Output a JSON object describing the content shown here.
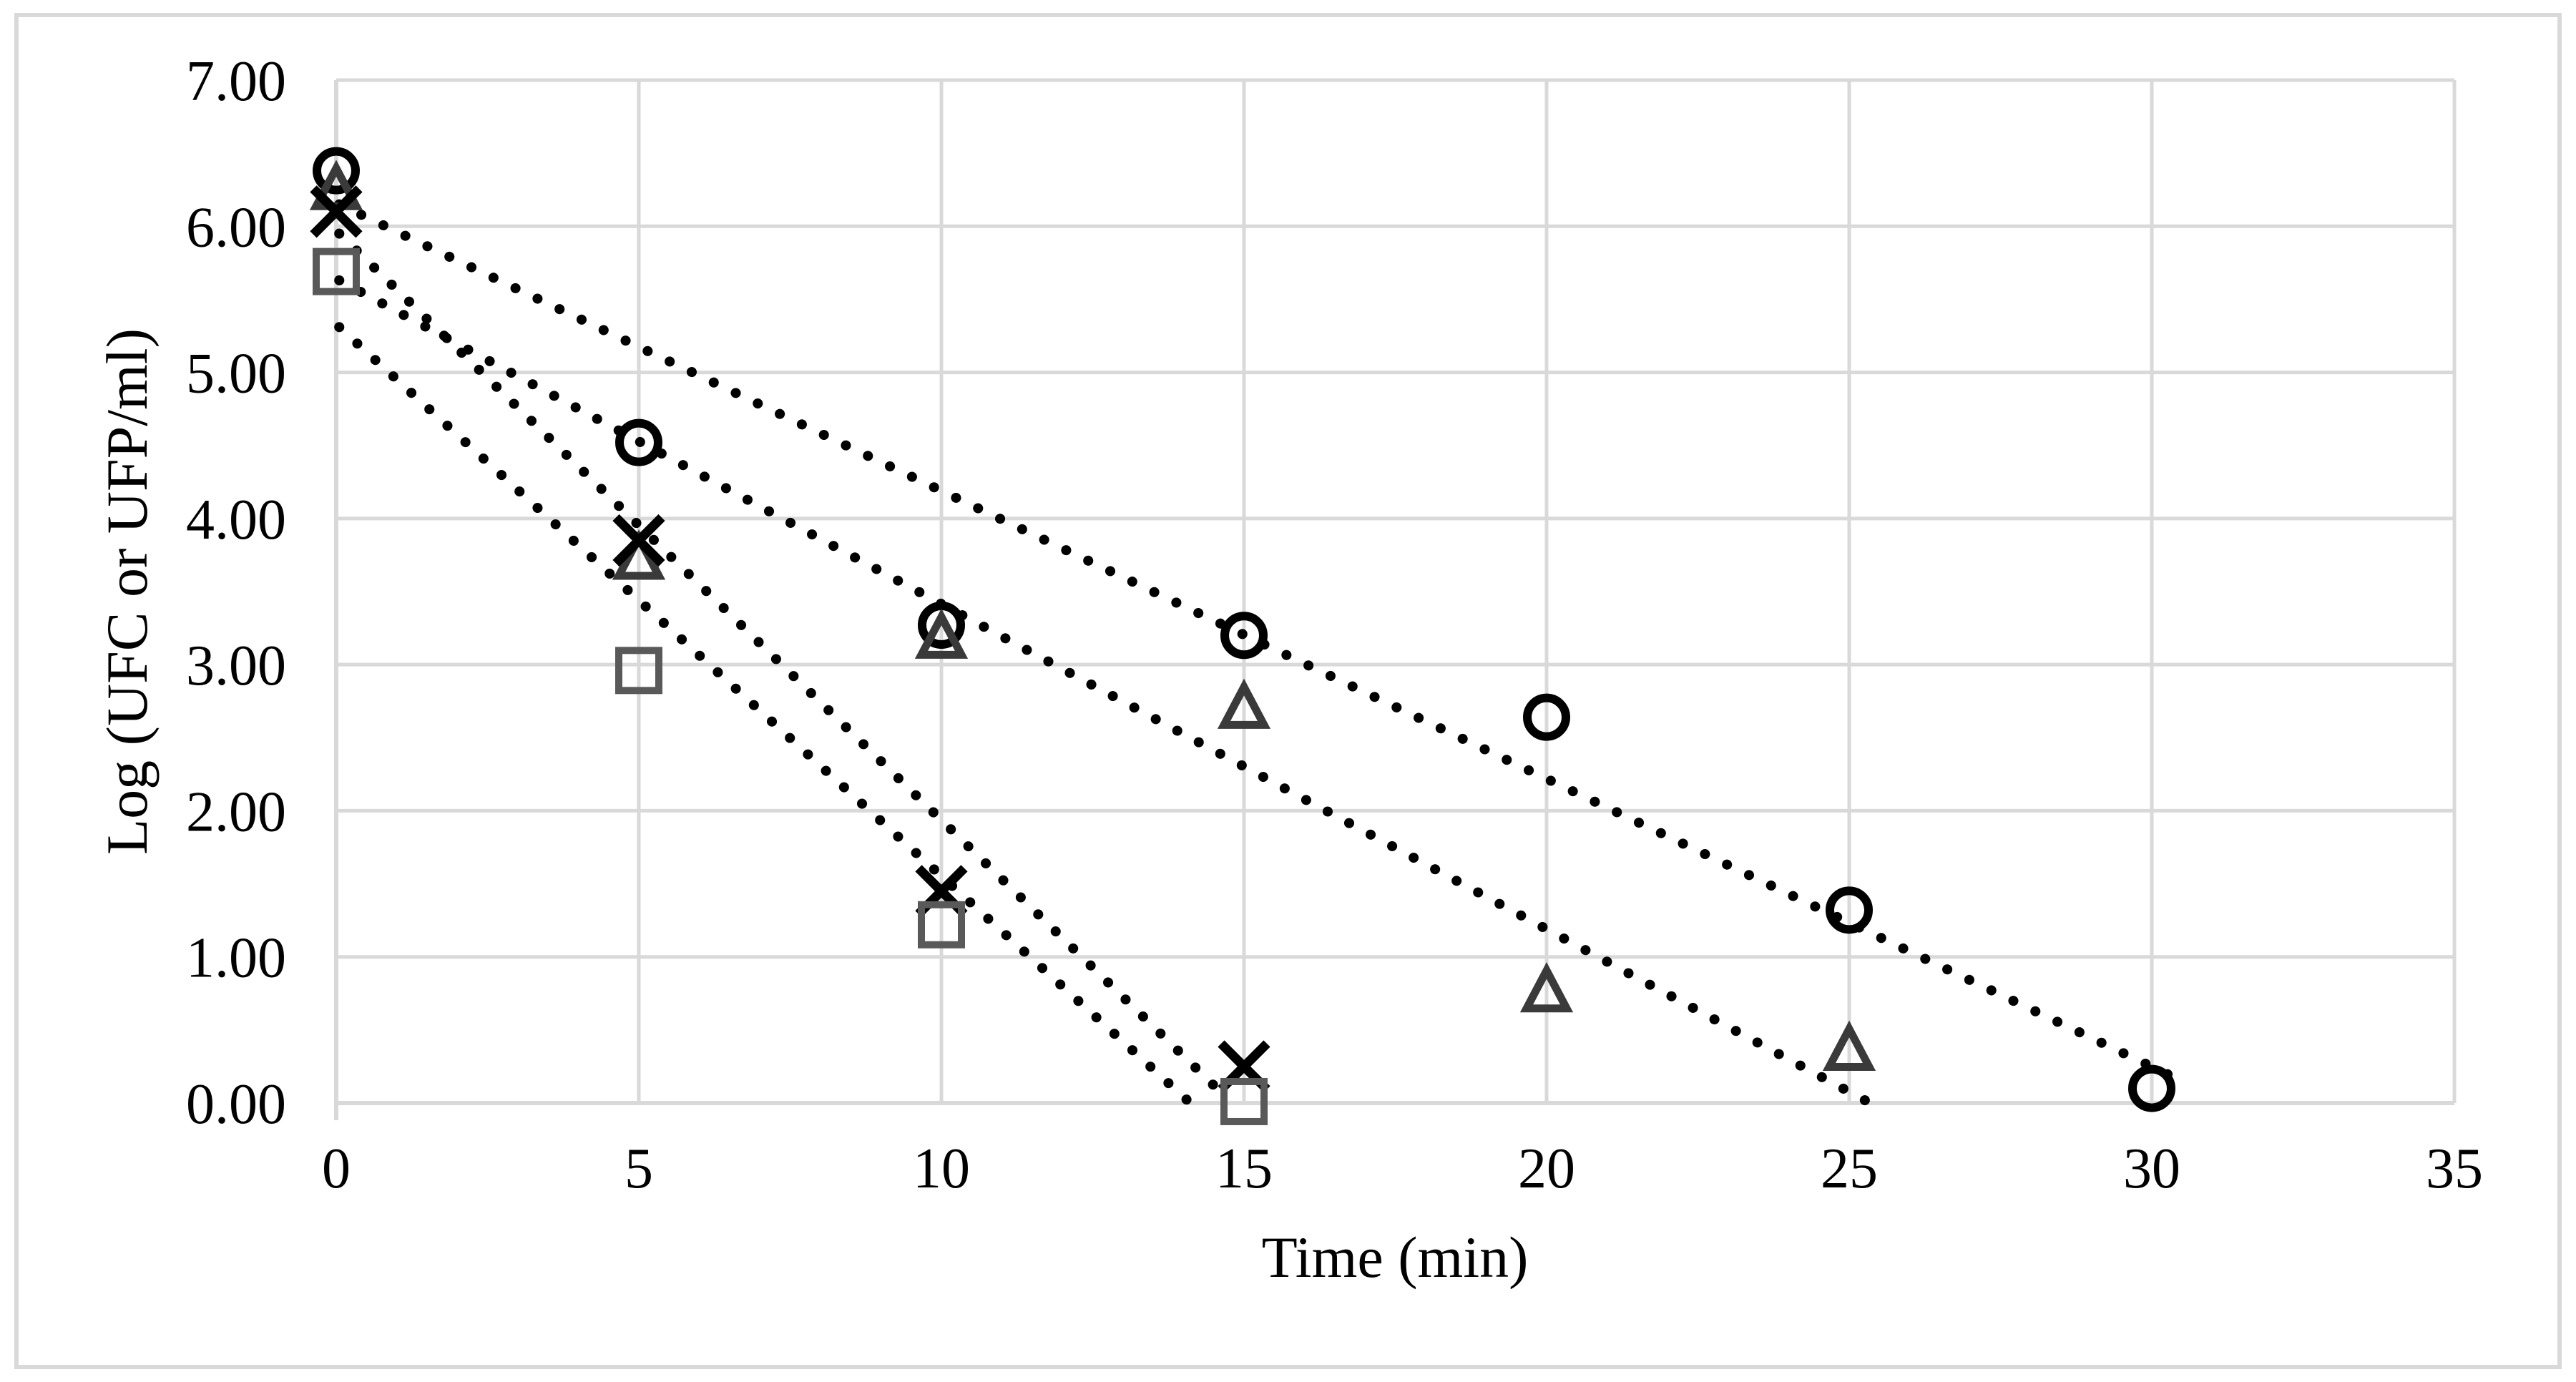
{
  "figure": {
    "background": "#ffffff",
    "border_color": "#d9d9d9"
  },
  "chart_data": {
    "type": "scatter",
    "title": "",
    "xlabel": "Time (min)",
    "ylabel": "Log (UFC or UFP/ml)",
    "xlim": [
      0,
      35
    ],
    "ylim": [
      0,
      7
    ],
    "x_ticks": [
      0,
      5,
      10,
      15,
      20,
      25,
      30,
      35
    ],
    "y_ticks": [
      0,
      1,
      2,
      3,
      4,
      5,
      6,
      7
    ],
    "y_tick_labels": [
      "0.00",
      "1.00",
      "2.00",
      "3.00",
      "4.00",
      "5.00",
      "6.00",
      "7.00"
    ],
    "x_tick_labels": [
      "0",
      "5",
      "10",
      "15",
      "20",
      "25",
      "30",
      "35"
    ],
    "grid": true,
    "legend_position": "none",
    "grid_color": "#d9d9d9",
    "axis_color": "#d9d9d9",
    "text_color": "#000000",
    "series": [
      {
        "name": "circle-series",
        "marker": "circle",
        "color": "#000000",
        "points": [
          [
            0,
            6.38
          ],
          [
            5,
            4.52
          ],
          [
            10,
            3.27
          ],
          [
            15,
            3.2
          ],
          [
            20,
            2.64
          ],
          [
            25,
            1.32
          ],
          [
            30,
            0.1
          ]
        ],
        "trendline": {
          "style": "dotted",
          "color": "#000000",
          "from": [
            0.05,
            6.15
          ],
          "to": [
            30.45,
            0.16
          ]
        }
      },
      {
        "name": "triangle-series",
        "marker": "triangle",
        "color": "#3a3a3a",
        "points": [
          [
            0,
            6.25
          ],
          [
            5,
            3.72
          ],
          [
            10,
            3.18
          ],
          [
            15,
            2.7
          ],
          [
            20,
            0.76
          ],
          [
            25,
            0.36
          ]
        ],
        "trendline": {
          "style": "dotted",
          "color": "#000000",
          "from": [
            0.05,
            5.63
          ],
          "to": [
            25.3,
            0.01
          ]
        }
      },
      {
        "name": "x-series",
        "marker": "x",
        "color": "#000000",
        "points": [
          [
            0,
            6.1
          ],
          [
            5,
            3.85
          ],
          [
            10,
            1.45
          ],
          [
            15,
            0.25
          ]
        ],
        "trendline": {
          "style": "dotted",
          "color": "#000000",
          "from": [
            0.05,
            5.95
          ],
          "to": [
            14.75,
            0.02
          ]
        }
      },
      {
        "name": "square-series",
        "marker": "square",
        "color": "#595959",
        "points": [
          [
            0,
            5.69
          ],
          [
            5,
            2.96
          ],
          [
            10,
            1.22
          ],
          [
            15,
            0.01
          ]
        ],
        "trendline": {
          "style": "dotted",
          "color": "#000000",
          "from": [
            0.05,
            5.31
          ],
          "to": [
            14.1,
            0.005
          ]
        }
      }
    ]
  }
}
